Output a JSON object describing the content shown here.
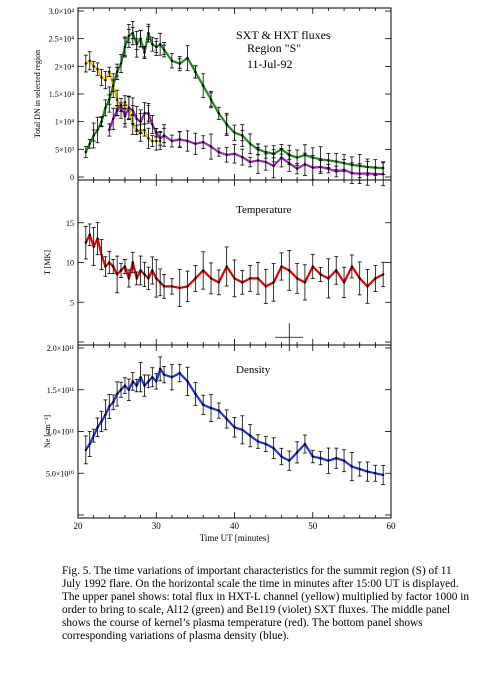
{
  "caption": "Fig. 5. The time variations of important characteristics for the summit region   (S) of 11 July 1992 flare. On the horizontal scale the time in minutes after 15:00 UT is displayed. The upper panel shows: total flux in   HXT-L channel (yellow) multiplied by factor 1000 in order to bring to scale, Al12 (green) and Be119 (violet) SXT fluxes. The middle panel shows the course of kernel’s plasma temperature (red). The bottom panel shows corresponding variations of plasma density (blue).",
  "x_axis": {
    "label": "Time UT [minutes]",
    "ticks": [
      "20",
      "30",
      "40",
      "50",
      "60"
    ]
  },
  "chart_data": [
    {
      "type": "line",
      "panel": "top",
      "annotations": [
        "SXT & HXT fluxes",
        "Region \"S\"",
        "11-Jul-92"
      ],
      "ylabel": "Total DN in selected region",
      "xlim": [
        20,
        60
      ],
      "ylim": [
        0,
        30000
      ],
      "yticks": [
        {
          "value": 0,
          "label": "0"
        },
        {
          "value": 5000,
          "label": "5×10³"
        },
        {
          "value": 10000,
          "label": "1×10⁴"
        },
        {
          "value": 15000,
          "label": "1.5×10⁴"
        },
        {
          "value": 20000,
          "label": "2×10⁴"
        },
        {
          "value": 25000,
          "label": "2.5×10⁴"
        },
        {
          "value": 30000,
          "label": "3.0×10⁴"
        }
      ],
      "series": [
        {
          "key": "hxt",
          "color": "#f5c400",
          "x": [
            21.0,
            21.5,
            22.0,
            22.5,
            23.0,
            23.5,
            24.0,
            24.5,
            25.0,
            25.5,
            26.0,
            26.5,
            27.0,
            27.5,
            28.0,
            28.5,
            29.0,
            29.5,
            30.0,
            30.5
          ],
          "y": [
            20500,
            21000,
            20000,
            19500,
            18000,
            17500,
            19000,
            16500,
            14000,
            12000,
            13500,
            12500,
            9500,
            8500,
            8000,
            8500,
            7000,
            6500,
            6500,
            6500
          ]
        },
        {
          "key": "al12",
          "color": "#1f8a1f",
          "x": [
            21.0,
            21.5,
            22.0,
            22.5,
            23.0,
            23.5,
            24.0,
            24.5,
            25.0,
            25.5,
            26.0,
            26.5,
            27.0,
            27.5,
            28.0,
            28.5,
            29.0,
            29.5,
            30.0,
            30.5,
            31.0,
            32.0,
            33.0,
            34.0,
            35.0,
            36.0,
            37.0,
            38.0,
            39.0,
            40.0,
            41.0,
            42.0,
            43.0,
            44.0,
            45.0,
            46.0,
            47.0,
            48.0,
            49.0,
            50.0,
            51.0,
            52.0,
            53.0,
            54.0,
            55.0,
            56.0,
            57.0,
            58.0,
            59.0
          ],
          "y": [
            4500,
            6000,
            7500,
            8500,
            10000,
            12500,
            14000,
            16500,
            19000,
            20500,
            23500,
            25500,
            26000,
            24000,
            25000,
            22500,
            26000,
            24000,
            23500,
            24000,
            23000,
            21000,
            20500,
            21500,
            19000,
            16500,
            14000,
            11500,
            9500,
            8000,
            7500,
            6000,
            5000,
            4500,
            4200,
            5000,
            4000,
            3500,
            4000,
            3500,
            3200,
            3000,
            2800,
            2500,
            2200,
            2000,
            1800,
            1700,
            1600
          ]
        },
        {
          "key": "be119",
          "color": "#a020c0",
          "x": [
            24.0,
            24.5,
            25.0,
            25.5,
            26.0,
            26.5,
            27.0,
            27.5,
            28.0,
            28.5,
            29.0,
            29.5,
            30.0,
            30.5,
            31.0,
            32.0,
            33.0,
            34.0,
            35.0,
            36.0,
            37.0,
            38.0,
            39.0,
            40.0,
            41.0,
            42.0,
            43.0,
            44.0,
            45.0,
            46.0,
            47.0,
            48.0,
            49.0,
            50.0,
            51.0,
            52.0,
            53.0,
            54.0,
            55.0,
            56.0,
            57.0,
            58.0,
            59.0
          ],
          "y": [
            8500,
            10500,
            12000,
            13000,
            11000,
            12500,
            12000,
            10500,
            10000,
            11500,
            11500,
            9500,
            8000,
            7000,
            7500,
            6500,
            6800,
            6500,
            6000,
            6300,
            5500,
            4500,
            4000,
            4200,
            3600,
            2700,
            3000,
            2700,
            2000,
            3500,
            2500,
            1500,
            2300,
            1700,
            1800,
            1500,
            1000,
            1300,
            700,
            600,
            650,
            550,
            500
          ]
        },
        {
          "key": "al12_errors",
          "color": "#000000",
          "x": [
            22.0,
            23.0,
            24.0,
            25.0,
            26.0,
            26.5,
            27.0,
            27.5,
            28.0,
            28.5,
            29.0,
            30.0,
            31.0,
            33.0,
            35.0,
            37.0,
            39.0,
            41.0,
            43.0,
            45.0,
            47.0
          ],
          "y": [
            7500,
            10000,
            14000,
            19000,
            23500,
            25500,
            26000,
            24000,
            25000,
            22500,
            26000,
            23500,
            23000,
            20500,
            19000,
            14000,
            9500,
            7500,
            5000,
            4200,
            4000
          ]
        },
        {
          "key": "be119_errors",
          "color": "#000000",
          "x": [
            25.0,
            26.0,
            27.0,
            28.0,
            29.0,
            30.0,
            31.0,
            33.0
          ],
          "y": [
            12000,
            11000,
            12000,
            10000,
            11500,
            8000,
            7500,
            6800
          ]
        }
      ]
    },
    {
      "type": "line",
      "panel": "middle",
      "annotations": [
        "Temperature"
      ],
      "ylabel": "T [MK]",
      "xlim": [
        20,
        60
      ],
      "ylim": [
        0,
        20
      ],
      "yticks": [
        {
          "value": 0,
          "label": ""
        },
        {
          "value": 5,
          "label": "5"
        },
        {
          "value": 10,
          "label": "10"
        },
        {
          "value": 15,
          "label": "15"
        }
      ],
      "series": [
        {
          "key": "temperature",
          "color": "#e00000",
          "x": [
            21.0,
            21.5,
            22.0,
            22.5,
            23.0,
            23.5,
            24.0,
            24.5,
            25.0,
            25.5,
            26.0,
            26.5,
            27.0,
            27.5,
            28.0,
            28.5,
            29.0,
            29.5,
            30.0,
            30.5,
            31.0,
            32.0,
            33.0,
            34.0,
            35.0,
            36.0,
            37.0,
            38.0,
            39.0,
            40.0,
            41.0,
            42.0,
            43.0,
            44.0,
            45.0,
            46.0,
            47.0,
            48.0,
            49.0,
            50.0,
            51.0,
            52.0,
            53.0,
            54.0,
            55.0,
            56.0,
            57.0,
            58.0,
            59.0
          ],
          "y": [
            12.5,
            13.5,
            12.0,
            13.0,
            11.0,
            9.5,
            10.0,
            9.5,
            8.5,
            9.0,
            9.5,
            8.0,
            10.0,
            8.0,
            9.0,
            8.5,
            8.0,
            9.0,
            8.0,
            7.5,
            7.0,
            7.0,
            6.8,
            7.0,
            8.0,
            9.0,
            8.0,
            7.5,
            9.5,
            8.0,
            7.5,
            8.0,
            8.0,
            7.0,
            7.5,
            9.5,
            9.0,
            8.0,
            7.5,
            9.5,
            8.5,
            8.0,
            9.0,
            7.5,
            9.5,
            8.0,
            7.0,
            8.0,
            8.5
          ]
        }
      ]
    },
    {
      "type": "line",
      "panel": "bottom",
      "annotations": [
        "Density"
      ],
      "ylabel": "Ne [cm⁻³]",
      "xlim": [
        20,
        60
      ],
      "ylim": [
        0,
        200000000000.0
      ],
      "yticks": [
        {
          "value": 0,
          "label": ""
        },
        {
          "value": 50000000000.0,
          "label": "5.0×10¹⁰"
        },
        {
          "value": 100000000000.0,
          "label": "1.0×10¹¹"
        },
        {
          "value": 150000000000.0,
          "label": "1.5×10¹¹"
        },
        {
          "value": 200000000000.0,
          "label": "2.0×10¹¹"
        }
      ],
      "series": [
        {
          "key": "density",
          "color": "#2030e0",
          "x": [
            21.0,
            21.5,
            22.0,
            22.5,
            23.0,
            23.5,
            24.0,
            24.5,
            25.0,
            25.5,
            26.0,
            26.5,
            27.0,
            27.5,
            28.0,
            28.5,
            29.0,
            29.5,
            30.0,
            30.5,
            31.0,
            32.0,
            33.0,
            34.0,
            35.0,
            36.0,
            37.0,
            38.0,
            39.0,
            40.0,
            41.0,
            42.0,
            43.0,
            44.0,
            45.0,
            46.0,
            47.0,
            48.0,
            49.0,
            50.0,
            51.0,
            52.0,
            53.0,
            54.0,
            55.0,
            56.0,
            57.0,
            58.0,
            59.0
          ],
          "y": [
            78000000000.0,
            85000000000.0,
            95000000000.0,
            105000000000.0,
            112000000000.0,
            120000000000.0,
            130000000000.0,
            135000000000.0,
            145000000000.0,
            150000000000.0,
            155000000000.0,
            150000000000.0,
            160000000000.0,
            155000000000.0,
            165000000000.0,
            155000000000.0,
            160000000000.0,
            165000000000.0,
            160000000000.0,
            175000000000.0,
            168000000000.0,
            165000000000.0,
            170000000000.0,
            160000000000.0,
            145000000000.0,
            132000000000.0,
            128000000000.0,
            125000000000.0,
            115000000000.0,
            105000000000.0,
            102000000000.0,
            95000000000.0,
            88000000000.0,
            85000000000.0,
            80000000000.0,
            70000000000.0,
            65000000000.0,
            75000000000.0,
            85000000000.0,
            70000000000.0,
            68000000000.0,
            65000000000.0,
            68000000000.0,
            65000000000.0,
            58000000000.0,
            55000000000.0,
            52000000000.0,
            50000000000.0,
            48000000000.0
          ]
        }
      ]
    }
  ],
  "colors": {
    "frame": "#000000",
    "background": "#ffffff"
  }
}
